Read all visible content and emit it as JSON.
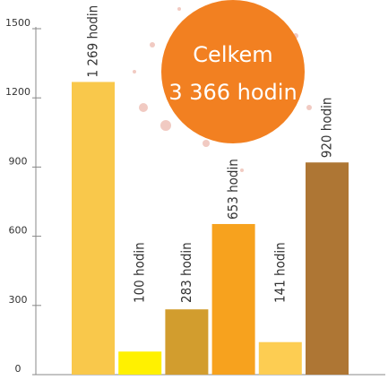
{
  "chart_data": {
    "type": "bar",
    "categories": [
      null,
      null,
      null,
      null,
      null,
      null
    ],
    "values": [
      1269,
      100,
      283,
      653,
      141,
      920
    ],
    "value_labels": [
      "1 269 hodin",
      "100 hodin",
      "283 hodin",
      "653 hodin",
      "141 hodin",
      "920 hodin"
    ],
    "colors": [
      "#f9c84b",
      "#fff100",
      "#d29d2e",
      "#f7a21e",
      "#fdcd52",
      "#ae7634"
    ],
    "ylim": [
      0,
      1500
    ],
    "yticks": [
      0,
      300,
      600,
      900,
      1200,
      1500
    ],
    "annotation": [
      "Celkem",
      "3 366 hodin"
    ],
    "annotation_color": "#f28021"
  }
}
